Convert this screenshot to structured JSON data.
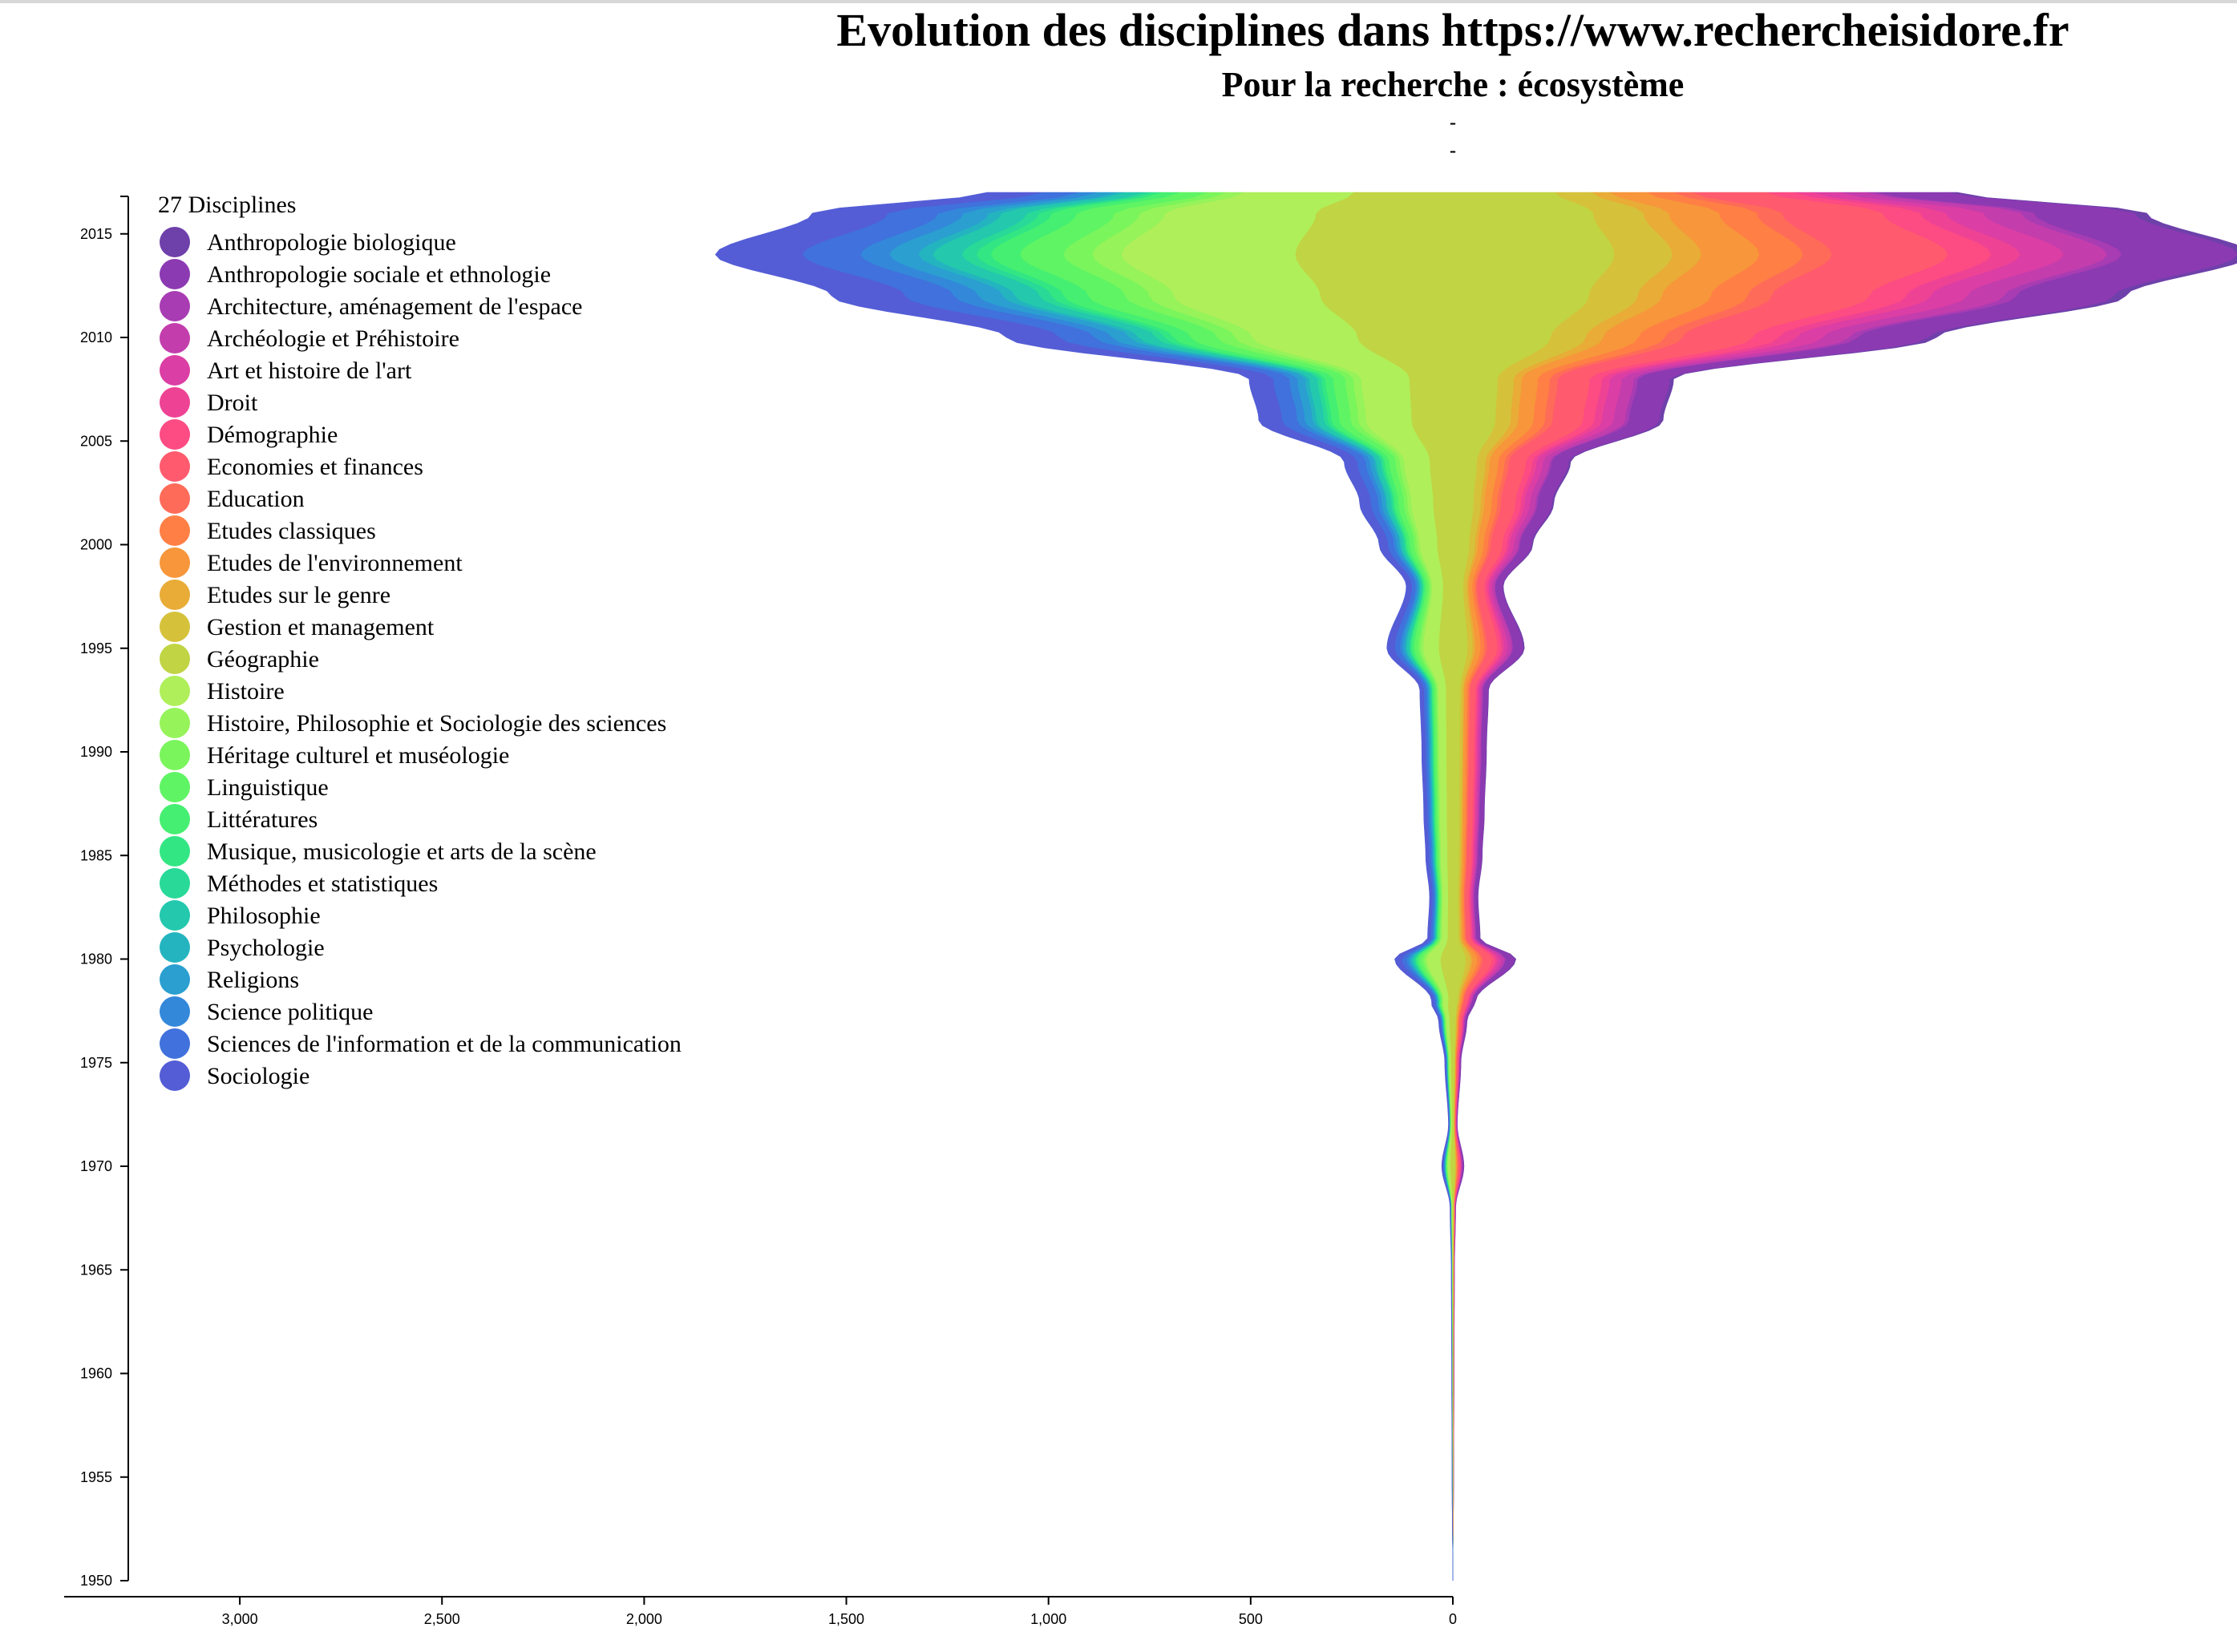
{
  "chart_data": {
    "type": "area",
    "title": "Evolution des disciplines dans https://www.rechercheisidore.fr",
    "subtitle": "Pour la recherche : écosystème",
    "subtitle_dashes": [
      "-",
      "-"
    ],
    "xlabel": "",
    "ylabel": "",
    "legend_title": "27 Disciplines",
    "legend_position": "top-left",
    "grid": false,
    "x_axis_ticks": [
      "3,000",
      "2,500",
      "2,000",
      "1,500",
      "1,000",
      "500",
      "0"
    ],
    "xlim": [
      3450,
      0
    ],
    "y_axis_ticks": [
      "1950",
      "1955",
      "1960",
      "1965",
      "1970",
      "1975",
      "1980",
      "1985",
      "1990",
      "1995",
      "2000",
      "2005",
      "2010",
      "2015"
    ],
    "ylim": [
      1950,
      2017
    ],
    "total_width_by_year": [
      {
        "year": 1950,
        "value": 0
      },
      {
        "year": 1955,
        "value": 4
      },
      {
        "year": 1960,
        "value": 6
      },
      {
        "year": 1965,
        "value": 8
      },
      {
        "year": 1968,
        "value": 14
      },
      {
        "year": 1970,
        "value": 55
      },
      {
        "year": 1972,
        "value": 22
      },
      {
        "year": 1975,
        "value": 40
      },
      {
        "year": 1977,
        "value": 70
      },
      {
        "year": 1978,
        "value": 110
      },
      {
        "year": 1980,
        "value": 300
      },
      {
        "year": 1981,
        "value": 130
      },
      {
        "year": 1983,
        "value": 120
      },
      {
        "year": 1985,
        "value": 140
      },
      {
        "year": 1987,
        "value": 150
      },
      {
        "year": 1990,
        "value": 160
      },
      {
        "year": 1993,
        "value": 170
      },
      {
        "year": 1995,
        "value": 340
      },
      {
        "year": 1998,
        "value": 240
      },
      {
        "year": 2000,
        "value": 380
      },
      {
        "year": 2002,
        "value": 480
      },
      {
        "year": 2004,
        "value": 560
      },
      {
        "year": 2006,
        "value": 1000
      },
      {
        "year": 2008,
        "value": 1050
      },
      {
        "year": 2010,
        "value": 2300
      },
      {
        "year": 2012,
        "value": 3200
      },
      {
        "year": 2014,
        "value": 3800
      },
      {
        "year": 2016,
        "value": 3300
      },
      {
        "year": 2017,
        "value": 2400
      }
    ],
    "series": [
      {
        "name": "Anthropologie biologique",
        "color": "#6e40aa"
      },
      {
        "name": "Anthropologie sociale et ethnologie",
        "color": "#8c3ab2"
      },
      {
        "name": "Architecture, aménagement de l'espace",
        "color": "#a83cb3"
      },
      {
        "name": "Archéologie et Préhistoire",
        "color": "#c33dad"
      },
      {
        "name": "Art et histoire de l'art",
        "color": "#db3ea4"
      },
      {
        "name": "Droit",
        "color": "#ee4395"
      },
      {
        "name": "Démographie",
        "color": "#fd4b83"
      },
      {
        "name": "Economies et finances",
        "color": "#ff5a6e"
      },
      {
        "name": "Education",
        "color": "#ff6b59"
      },
      {
        "name": "Etudes classiques",
        "color": "#ff7f45"
      },
      {
        "name": "Etudes de l'environnement",
        "color": "#f7963a"
      },
      {
        "name": "Etudes sur le genre",
        "color": "#e8ac37"
      },
      {
        "name": "Gestion et management",
        "color": "#d5c23a"
      },
      {
        "name": "Géographie",
        "color": "#c1d443"
      },
      {
        "name": "Histoire",
        "color": "#afef5a"
      },
      {
        "name": "Histoire, Philosophie et Sociologie des sciences",
        "color": "#96f35a"
      },
      {
        "name": "Héritage culturel et muséologie",
        "color": "#7af55c"
      },
      {
        "name": "Linguistique",
        "color": "#5ff464"
      },
      {
        "name": "Littératures",
        "color": "#45ef71"
      },
      {
        "name": "Musique, musicologie et arts de la scène",
        "color": "#32e683"
      },
      {
        "name": "Méthodes et statistiques",
        "color": "#28d998"
      },
      {
        "name": "Philosophie",
        "color": "#23c8ad"
      },
      {
        "name": "Psychologie",
        "color": "#24b4c0"
      },
      {
        "name": "Religions",
        "color": "#2a9fd0"
      },
      {
        "name": "Science politique",
        "color": "#3388da"
      },
      {
        "name": "Sciences de l'information et de la communication",
        "color": "#4071dc"
      },
      {
        "name": "Sociologie",
        "color": "#545dd6"
      }
    ],
    "shares": [
      0.01,
      0.08,
      0.01,
      0.03,
      0.03,
      0.02,
      0.03,
      0.08,
      0.02,
      0.03,
      0.04,
      0.02,
      0.04,
      0.22,
      0.12,
      0.02,
      0.02,
      0.03,
      0.02,
      0.01,
      0.01,
      0.02,
      0.01,
      0.02,
      0.02,
      0.04,
      0.06
    ]
  }
}
